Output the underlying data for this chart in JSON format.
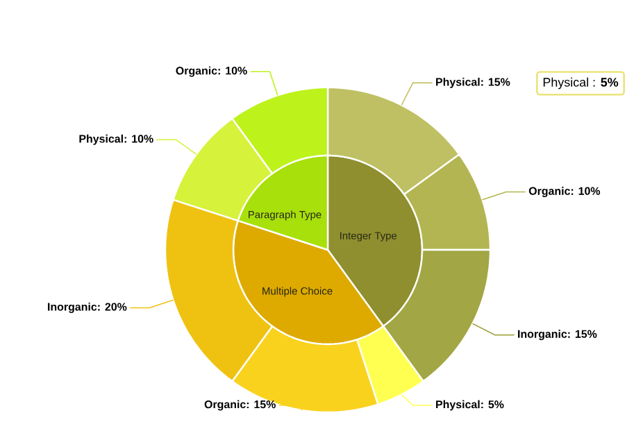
{
  "chart_data": [
    {
      "type": "pie",
      "categories": [
        "Integer Type",
        "Multiple Choice",
        "Paragraph Type"
      ],
      "values": [
        40,
        40,
        20
      ],
      "colors": [
        "#8f8f30",
        "#deaa00",
        "#a8e00c"
      ]
    },
    {
      "type": "donut",
      "categories": [
        "Physical: 15%",
        "Organic: 10%",
        "Inorganic: 15%",
        "Physical: 5%",
        "Organic: 15%",
        "Inorganic: 20%",
        "Physical: 10%",
        "Organic: 10%"
      ],
      "values": [
        15,
        10,
        15,
        5,
        15,
        20,
        10,
        10
      ],
      "colors": [
        "#bfc063",
        "#b3b552",
        "#a2a644",
        "#ffff52",
        "#f9d21e",
        "#efc212",
        "#d6f23a",
        "#bdf21b"
      ],
      "annotations": [
        "Physical : **5%**"
      ]
    }
  ]
}
